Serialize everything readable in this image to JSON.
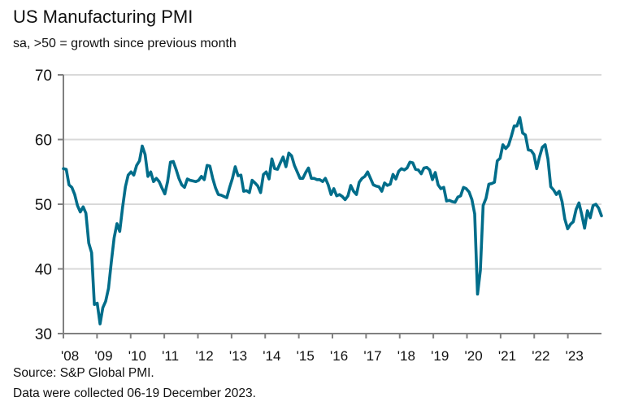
{
  "chart_data": {
    "type": "line",
    "title": "US Manufacturing PMI",
    "subtitle": "sa, >50 = growth since previous month",
    "xlabel": "",
    "ylabel": "",
    "ylim": [
      30,
      70
    ],
    "yticks": [
      "30",
      "40",
      "50",
      "60",
      "70"
    ],
    "xticks": [
      "'08",
      "'09",
      "'10",
      "'11",
      "'12",
      "'13",
      "'14",
      "'15",
      "'16",
      "'17",
      "'18",
      "'19",
      "'20",
      "'21",
      "'22",
      "'23"
    ],
    "x_start": "2008-01",
    "frequency": "monthly",
    "grid": true,
    "series": [
      {
        "name": "US Manufacturing PMI",
        "color": "#006d8a",
        "values": [
          55.5,
          55.4,
          53,
          52.6,
          51.5,
          49.8,
          48.8,
          49.6,
          48.6,
          44,
          42.5,
          34.5,
          34.7,
          31.5,
          34,
          35,
          37,
          41,
          44.8,
          47,
          45.8,
          49.5,
          52.7,
          54.5,
          55,
          54.5,
          56,
          56.7,
          59,
          57.7,
          54.3,
          55,
          53.5,
          54,
          53.5,
          52.5,
          51.6,
          53.5,
          56.5,
          56.6,
          55.4,
          54,
          53,
          52.6,
          53.9,
          53.7,
          53.6,
          53.5,
          53.7,
          54.3,
          53.8,
          56,
          55.9,
          54,
          52.5,
          51.5,
          51.4,
          51.2,
          51,
          52.6,
          54,
          55.8,
          54.4,
          54.5,
          52,
          52.1,
          51.8,
          53.7,
          53.3,
          52.8,
          51.8,
          54.6,
          55,
          53.9,
          57,
          55.5,
          55.4,
          56.4,
          57.3,
          55.8,
          57.9,
          57.5,
          56,
          55,
          54,
          54,
          54.9,
          55.6,
          54,
          54,
          53.8,
          53.8,
          53.5,
          54,
          53,
          51.5,
          52.4,
          51.3,
          51.5,
          51.2,
          50.7,
          51.3,
          52.9,
          52,
          51.5,
          53.4,
          54,
          54.3,
          55,
          54,
          53,
          52.8,
          52.7,
          52,
          53.3,
          52.9,
          53.1,
          54.6,
          53.9,
          55.1,
          55.5,
          55.3,
          55.6,
          56.5,
          56.4,
          55.4,
          55.3,
          54.7,
          55.6,
          55.7,
          55.3,
          53.8,
          54.9,
          53,
          52.4,
          52.6,
          50.5,
          50.6,
          50.4,
          50.3,
          51.1,
          51.3,
          52.6,
          52.4,
          51.9,
          50.7,
          48.5,
          36.1,
          39.8,
          49.8,
          50.9,
          53.1,
          53.2,
          53.4,
          56.7,
          57.1,
          59.2,
          58.6,
          59.1,
          60.5,
          62.1,
          62.1,
          63.4,
          61,
          60.7,
          58.4,
          58.3,
          57.7,
          55.5,
          57.3,
          58.8,
          59.2,
          57,
          52.7,
          52.2,
          51.5,
          52,
          50.4,
          47.7,
          46.2,
          46.9,
          47.3,
          49.2,
          50.2,
          48.4,
          46.3,
          49,
          47.9,
          49.8,
          50,
          49.4,
          48.2
        ]
      }
    ],
    "source": "Source: S&P Global PMI.",
    "note": "Data were collected 06-19 December 2023."
  }
}
